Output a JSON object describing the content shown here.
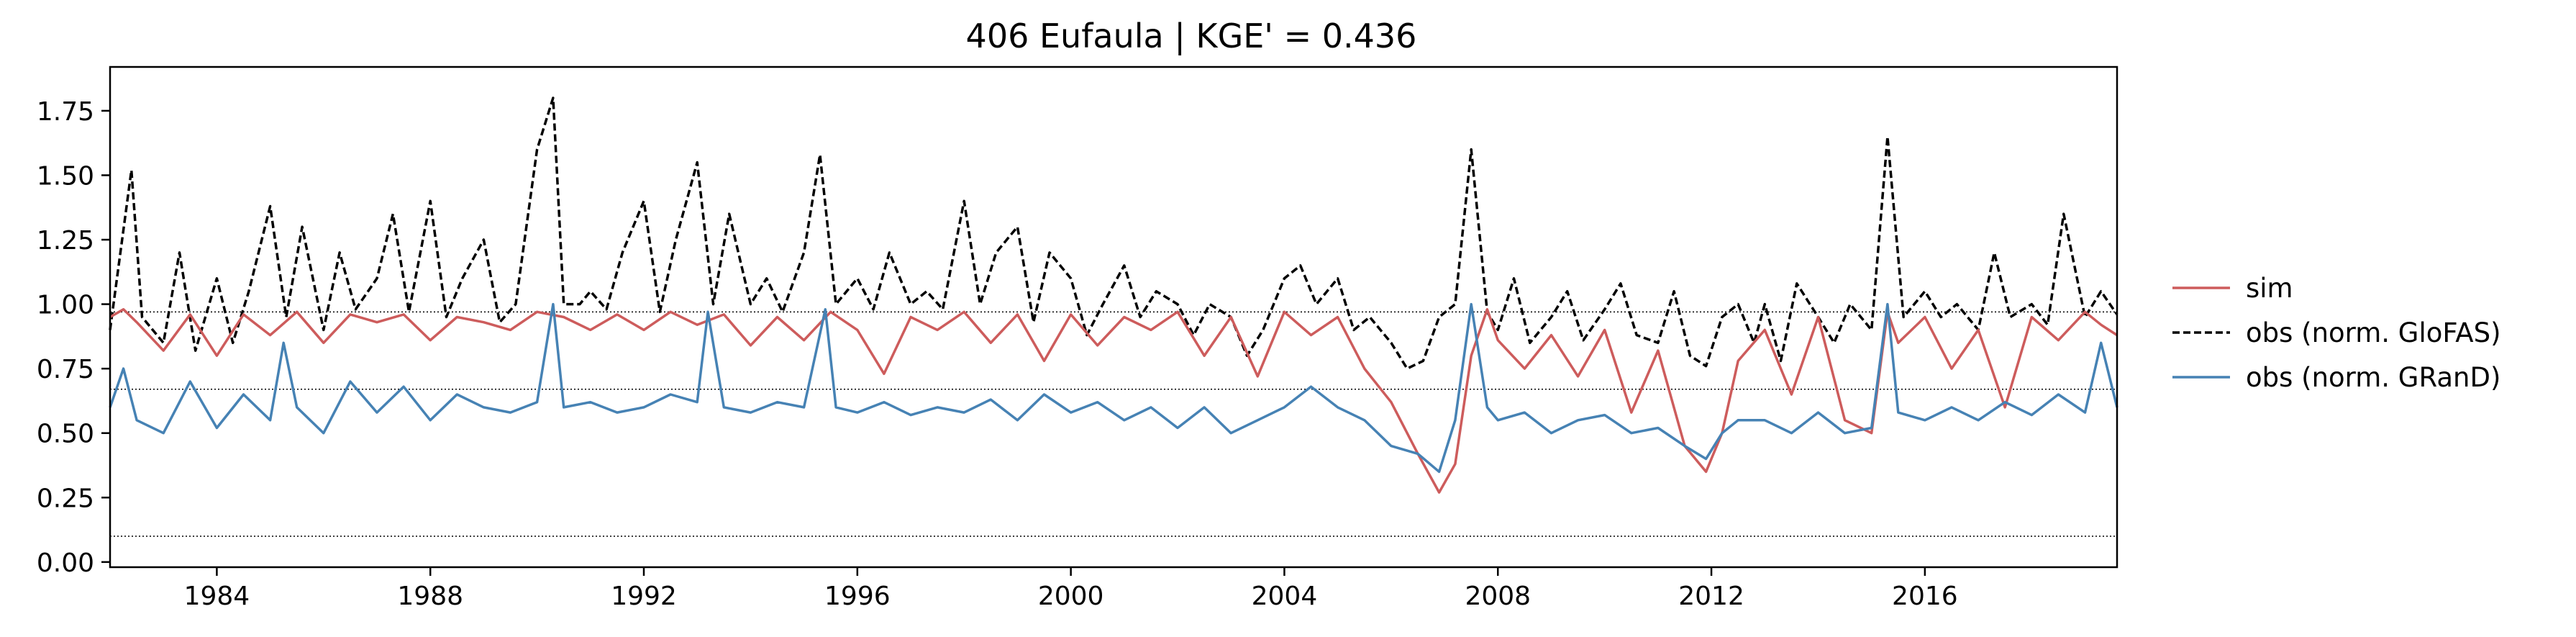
{
  "chart_data": {
    "type": "line",
    "title": "406  Eufaula | KGE' = 0.436",
    "xlabel": "",
    "ylabel": "",
    "xlim": [
      1982.0,
      2019.6
    ],
    "ylim": [
      -0.02,
      1.92
    ],
    "x_ticks": [
      1984,
      1988,
      1992,
      1996,
      2000,
      2004,
      2008,
      2012,
      2016
    ],
    "x_tick_labels": [
      "1984",
      "1988",
      "1992",
      "1996",
      "2000",
      "2004",
      "2008",
      "2012",
      "2016"
    ],
    "y_ticks": [
      0.0,
      0.25,
      0.5,
      0.75,
      1.0,
      1.25,
      1.5,
      1.75
    ],
    "y_tick_labels": [
      "0.00",
      "0.25",
      "0.50",
      "0.75",
      "1.00",
      "1.25",
      "1.50",
      "1.75"
    ],
    "reference_lines": [
      0.97,
      0.67,
      0.1
    ],
    "grid": false,
    "legend_position": "right",
    "colors": {
      "sim": "#cd5c5c",
      "glofas": "#000000",
      "grand": "#4682b4",
      "ref": "#000000"
    },
    "series": [
      {
        "name": "sim",
        "style": "solid",
        "x": [
          1982.0,
          1982.25,
          1982.5,
          1983.0,
          1983.5,
          1984.0,
          1984.5,
          1985.0,
          1985.5,
          1986.0,
          1986.5,
          1987.0,
          1987.5,
          1988.0,
          1988.5,
          1989.0,
          1989.5,
          1990.0,
          1990.5,
          1991.0,
          1991.5,
          1992.0,
          1992.5,
          1993.0,
          1993.5,
          1994.0,
          1994.5,
          1995.0,
          1995.5,
          1996.0,
          1996.5,
          1997.0,
          1997.5,
          1998.0,
          1998.5,
          1999.0,
          1999.5,
          2000.0,
          2000.5,
          2001.0,
          2001.5,
          2002.0,
          2002.5,
          2003.0,
          2003.5,
          2004.0,
          2004.5,
          2005.0,
          2005.5,
          2006.0,
          2006.5,
          2006.9,
          2007.2,
          2007.5,
          2007.8,
          2008.0,
          2008.5,
          2009.0,
          2009.5,
          2010.0,
          2010.5,
          2011.0,
          2011.5,
          2011.9,
          2012.2,
          2012.5,
          2013.0,
          2013.5,
          2014.0,
          2014.5,
          2015.0,
          2015.3,
          2015.5,
          2016.0,
          2016.5,
          2017.0,
          2017.5,
          2018.0,
          2018.5,
          2019.0,
          2019.3,
          2019.6
        ],
        "values": [
          0.95,
          0.98,
          0.93,
          0.82,
          0.96,
          0.8,
          0.96,
          0.88,
          0.97,
          0.85,
          0.96,
          0.93,
          0.96,
          0.86,
          0.95,
          0.93,
          0.9,
          0.97,
          0.95,
          0.9,
          0.96,
          0.9,
          0.97,
          0.92,
          0.96,
          0.84,
          0.95,
          0.86,
          0.97,
          0.9,
          0.73,
          0.95,
          0.9,
          0.97,
          0.85,
          0.96,
          0.78,
          0.96,
          0.84,
          0.95,
          0.9,
          0.97,
          0.8,
          0.95,
          0.72,
          0.97,
          0.88,
          0.95,
          0.75,
          0.62,
          0.42,
          0.27,
          0.38,
          0.8,
          0.98,
          0.86,
          0.75,
          0.88,
          0.72,
          0.9,
          0.58,
          0.82,
          0.45,
          0.35,
          0.5,
          0.78,
          0.9,
          0.65,
          0.95,
          0.55,
          0.5,
          0.97,
          0.85,
          0.95,
          0.75,
          0.9,
          0.6,
          0.95,
          0.86,
          0.97,
          0.92,
          0.88
        ]
      },
      {
        "name": "obs (norm. GloFAS)",
        "style": "dashed",
        "x": [
          1982.0,
          1982.4,
          1982.6,
          1983.0,
          1983.3,
          1983.6,
          1984.0,
          1984.3,
          1984.6,
          1985.0,
          1985.3,
          1985.6,
          1986.0,
          1986.3,
          1986.6,
          1987.0,
          1987.3,
          1987.6,
          1988.0,
          1988.3,
          1988.6,
          1989.0,
          1989.3,
          1989.6,
          1990.0,
          1990.3,
          1990.5,
          1990.8,
          1991.0,
          1991.3,
          1991.6,
          1992.0,
          1992.3,
          1992.6,
          1993.0,
          1993.3,
          1993.6,
          1994.0,
          1994.3,
          1994.6,
          1995.0,
          1995.3,
          1995.6,
          1996.0,
          1996.3,
          1996.6,
          1997.0,
          1997.3,
          1997.6,
          1998.0,
          1998.3,
          1998.6,
          1999.0,
          1999.3,
          1999.6,
          2000.0,
          2000.3,
          2000.6,
          2001.0,
          2001.3,
          2001.6,
          2002.0,
          2002.3,
          2002.6,
          2003.0,
          2003.3,
          2003.6,
          2004.0,
          2004.3,
          2004.6,
          2005.0,
          2005.3,
          2005.6,
          2006.0,
          2006.3,
          2006.6,
          2006.9,
          2007.2,
          2007.5,
          2007.8,
          2008.0,
          2008.3,
          2008.6,
          2009.0,
          2009.3,
          2009.6,
          2010.0,
          2010.3,
          2010.6,
          2011.0,
          2011.3,
          2011.6,
          2011.9,
          2012.2,
          2012.5,
          2012.8,
          2013.0,
          2013.3,
          2013.6,
          2014.0,
          2014.3,
          2014.6,
          2015.0,
          2015.3,
          2015.6,
          2016.0,
          2016.3,
          2016.6,
          2017.0,
          2017.3,
          2017.6,
          2018.0,
          2018.3,
          2018.6,
          2019.0,
          2019.3,
          2019.6
        ],
        "values": [
          0.9,
          1.52,
          0.95,
          0.85,
          1.2,
          0.82,
          1.1,
          0.85,
          1.05,
          1.38,
          0.95,
          1.3,
          0.9,
          1.2,
          0.98,
          1.1,
          1.35,
          0.97,
          1.4,
          0.95,
          1.1,
          1.25,
          0.93,
          1.0,
          1.6,
          1.8,
          1.0,
          1.0,
          1.05,
          0.98,
          1.2,
          1.4,
          0.97,
          1.25,
          1.55,
          1.0,
          1.35,
          1.0,
          1.1,
          0.97,
          1.2,
          1.58,
          1.0,
          1.1,
          0.98,
          1.2,
          1.0,
          1.05,
          0.98,
          1.4,
          1.0,
          1.2,
          1.3,
          0.93,
          1.2,
          1.1,
          0.88,
          1.0,
          1.15,
          0.95,
          1.05,
          1.0,
          0.88,
          1.0,
          0.95,
          0.8,
          0.9,
          1.1,
          1.15,
          1.0,
          1.1,
          0.9,
          0.95,
          0.85,
          0.75,
          0.78,
          0.95,
          1.0,
          1.6,
          0.97,
          0.9,
          1.1,
          0.85,
          0.95,
          1.05,
          0.86,
          0.98,
          1.08,
          0.88,
          0.85,
          1.05,
          0.8,
          0.76,
          0.95,
          1.0,
          0.85,
          1.0,
          0.78,
          1.08,
          0.95,
          0.85,
          1.0,
          0.9,
          1.65,
          0.95,
          1.05,
          0.95,
          1.0,
          0.9,
          1.2,
          0.95,
          1.0,
          0.92,
          1.35,
          0.95,
          1.05,
          0.96
        ]
      },
      {
        "name": "obs (norm. GRanD)",
        "style": "solid",
        "x": [
          1982.0,
          1982.25,
          1982.5,
          1983.0,
          1983.5,
          1984.0,
          1984.5,
          1985.0,
          1985.25,
          1985.5,
          1986.0,
          1986.5,
          1987.0,
          1987.5,
          1988.0,
          1988.5,
          1989.0,
          1989.5,
          1990.0,
          1990.3,
          1990.5,
          1991.0,
          1991.5,
          1992.0,
          1992.5,
          1993.0,
          1993.2,
          1993.5,
          1994.0,
          1994.5,
          1995.0,
          1995.4,
          1995.6,
          1996.0,
          1996.5,
          1997.0,
          1997.5,
          1998.0,
          1998.5,
          1999.0,
          1999.5,
          2000.0,
          2000.5,
          2001.0,
          2001.5,
          2002.0,
          2002.5,
          2003.0,
          2003.5,
          2004.0,
          2004.5,
          2005.0,
          2005.5,
          2006.0,
          2006.5,
          2006.9,
          2007.2,
          2007.5,
          2007.8,
          2008.0,
          2008.5,
          2009.0,
          2009.5,
          2010.0,
          2010.5,
          2011.0,
          2011.5,
          2011.9,
          2012.2,
          2012.5,
          2013.0,
          2013.5,
          2014.0,
          2014.5,
          2015.0,
          2015.3,
          2015.5,
          2016.0,
          2016.5,
          2017.0,
          2017.5,
          2018.0,
          2018.5,
          2019.0,
          2019.3,
          2019.6
        ],
        "values": [
          0.6,
          0.75,
          0.55,
          0.5,
          0.7,
          0.52,
          0.65,
          0.55,
          0.85,
          0.6,
          0.5,
          0.7,
          0.58,
          0.68,
          0.55,
          0.65,
          0.6,
          0.58,
          0.62,
          1.0,
          0.6,
          0.62,
          0.58,
          0.6,
          0.65,
          0.62,
          0.97,
          0.6,
          0.58,
          0.62,
          0.6,
          0.98,
          0.6,
          0.58,
          0.62,
          0.57,
          0.6,
          0.58,
          0.63,
          0.55,
          0.65,
          0.58,
          0.62,
          0.55,
          0.6,
          0.52,
          0.6,
          0.5,
          0.55,
          0.6,
          0.68,
          0.6,
          0.55,
          0.45,
          0.42,
          0.35,
          0.55,
          1.0,
          0.6,
          0.55,
          0.58,
          0.5,
          0.55,
          0.57,
          0.5,
          0.52,
          0.45,
          0.4,
          0.5,
          0.55,
          0.55,
          0.5,
          0.58,
          0.5,
          0.52,
          1.0,
          0.58,
          0.55,
          0.6,
          0.55,
          0.62,
          0.57,
          0.65,
          0.58,
          0.85,
          0.6
        ]
      }
    ]
  }
}
